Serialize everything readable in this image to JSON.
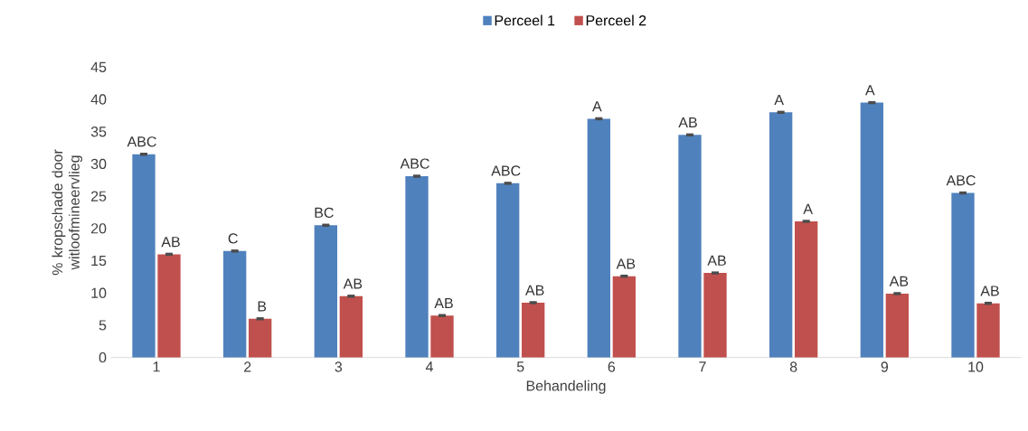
{
  "chart_data": {
    "type": "bar",
    "xlabel": "Behandeling",
    "ylabel": "% kropschade door witloofmineervlieg",
    "categories": [
      "1",
      "2",
      "3",
      "4",
      "5",
      "6",
      "7",
      "8",
      "9",
      "10"
    ],
    "series": [
      {
        "name": "Perceel 1",
        "color": "#4f81bd",
        "values": [
          31.5,
          16.5,
          20.5,
          28.1,
          27.0,
          37.0,
          34.5,
          38.0,
          39.5,
          25.5
        ],
        "errors": [
          0.1,
          0.1,
          0.1,
          0.1,
          0.1,
          0.1,
          0.1,
          0.1,
          0.1,
          0.1
        ]
      },
      {
        "name": "Perceel 2",
        "color": "#c0504d",
        "values": [
          16.0,
          6.0,
          9.5,
          6.5,
          8.5,
          12.6,
          13.1,
          21.1,
          9.9,
          8.4
        ],
        "errors": [
          0.1,
          0.1,
          0.1,
          0.1,
          0.1,
          0.1,
          0.1,
          0.1,
          0.1,
          0.1
        ]
      }
    ],
    "ylim": [
      0,
      45
    ],
    "yticks": [
      0,
      5,
      10,
      15,
      20,
      25,
      30,
      35,
      40,
      45
    ],
    "grid": false,
    "legend": "top",
    "annotations": [
      {
        "text": "ABC",
        "x": "1",
        "y": 31.5
      },
      {
        "text": "AB",
        "x": "1",
        "y": 16.0
      },
      {
        "text": "C",
        "x": "2",
        "y": 16.5
      },
      {
        "text": "B",
        "x": "2",
        "y": 6.0
      },
      {
        "text": "BC",
        "x": "3",
        "y": 20.5
      },
      {
        "text": "AB",
        "x": "3",
        "y": 9.5
      },
      {
        "text": "ABC",
        "x": "4",
        "y": 28.1
      },
      {
        "text": "AB",
        "x": "4",
        "y": 6.5
      },
      {
        "text": "ABC",
        "x": "5",
        "y": 27.0
      },
      {
        "text": "AB",
        "x": "5",
        "y": 8.5
      },
      {
        "text": "A",
        "x": "6",
        "y": 37.0
      },
      {
        "text": "AB",
        "x": "6",
        "y": 12.6
      },
      {
        "text": "AB",
        "x": "7",
        "y": 34.5
      },
      {
        "text": "AB",
        "x": "7",
        "y": 13.1
      },
      {
        "text": "A",
        "x": "8",
        "y": 38.0
      },
      {
        "text": "A",
        "x": "8",
        "y": 21.1
      },
      {
        "text": "A",
        "x": "9",
        "y": 39.5
      },
      {
        "text": "AB",
        "x": "9",
        "y": 9.9
      },
      {
        "text": "ABC",
        "x": "10",
        "y": 25.5
      },
      {
        "text": "AB",
        "x": "10",
        "y": 8.4
      }
    ]
  }
}
